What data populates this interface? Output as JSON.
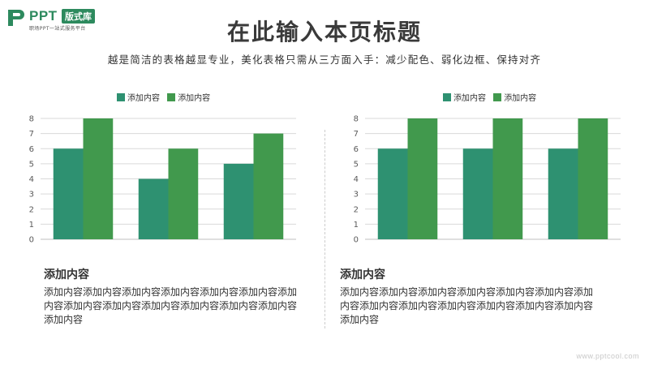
{
  "logo": {
    "brand": "PPT",
    "badge": "版式库",
    "tagline": "职场PPT一站式服务平台"
  },
  "header": {
    "title": "在此输入本页标题",
    "subtitle": "越是简洁的表格越显专业，美化表格只需从三方面入手：减少配色、弱化边框、保持对齐"
  },
  "colors": {
    "series1": "#2e9171",
    "series2": "#41994d",
    "grid": "#d9d9d9",
    "axis": "#bfbfbf",
    "tick": "#595959"
  },
  "chart_data": [
    {
      "type": "bar",
      "categories": [
        "",
        "",
        ""
      ],
      "series": [
        {
          "name": "添加内容",
          "values": [
            6,
            4,
            5
          ]
        },
        {
          "name": "添加内容",
          "values": [
            8,
            6,
            7
          ]
        }
      ],
      "ylim": [
        0,
        8
      ],
      "yticks": [
        "0",
        "1",
        "2",
        "3",
        "4",
        "5",
        "6",
        "7",
        "8"
      ],
      "grid": true,
      "legend": "top-center"
    },
    {
      "type": "bar",
      "categories": [
        "",
        "",
        ""
      ],
      "series": [
        {
          "name": "添加内容",
          "values": [
            6,
            6,
            6
          ]
        },
        {
          "name": "添加内容",
          "values": [
            8,
            8,
            8
          ]
        }
      ],
      "ylim": [
        0,
        8
      ],
      "yticks": [
        "0",
        "1",
        "2",
        "3",
        "4",
        "5",
        "6",
        "7",
        "8"
      ],
      "grid": true,
      "legend": "top-center"
    }
  ],
  "panels": [
    {
      "heading": "添加内容",
      "body": "添加内容添加内容添加内容添加内容添加内容添加内容添加内容添加内容添加内容添加内容添加内容添加内容添加内容添加内容"
    },
    {
      "heading": "添加内容",
      "body": "添加内容添加内容添加内容添加内容添加内容添加内容添加内容添加内容添加内容添加内容添加内容添加内容添加内容添加内容"
    }
  ],
  "watermark": "www.pptcool.com"
}
